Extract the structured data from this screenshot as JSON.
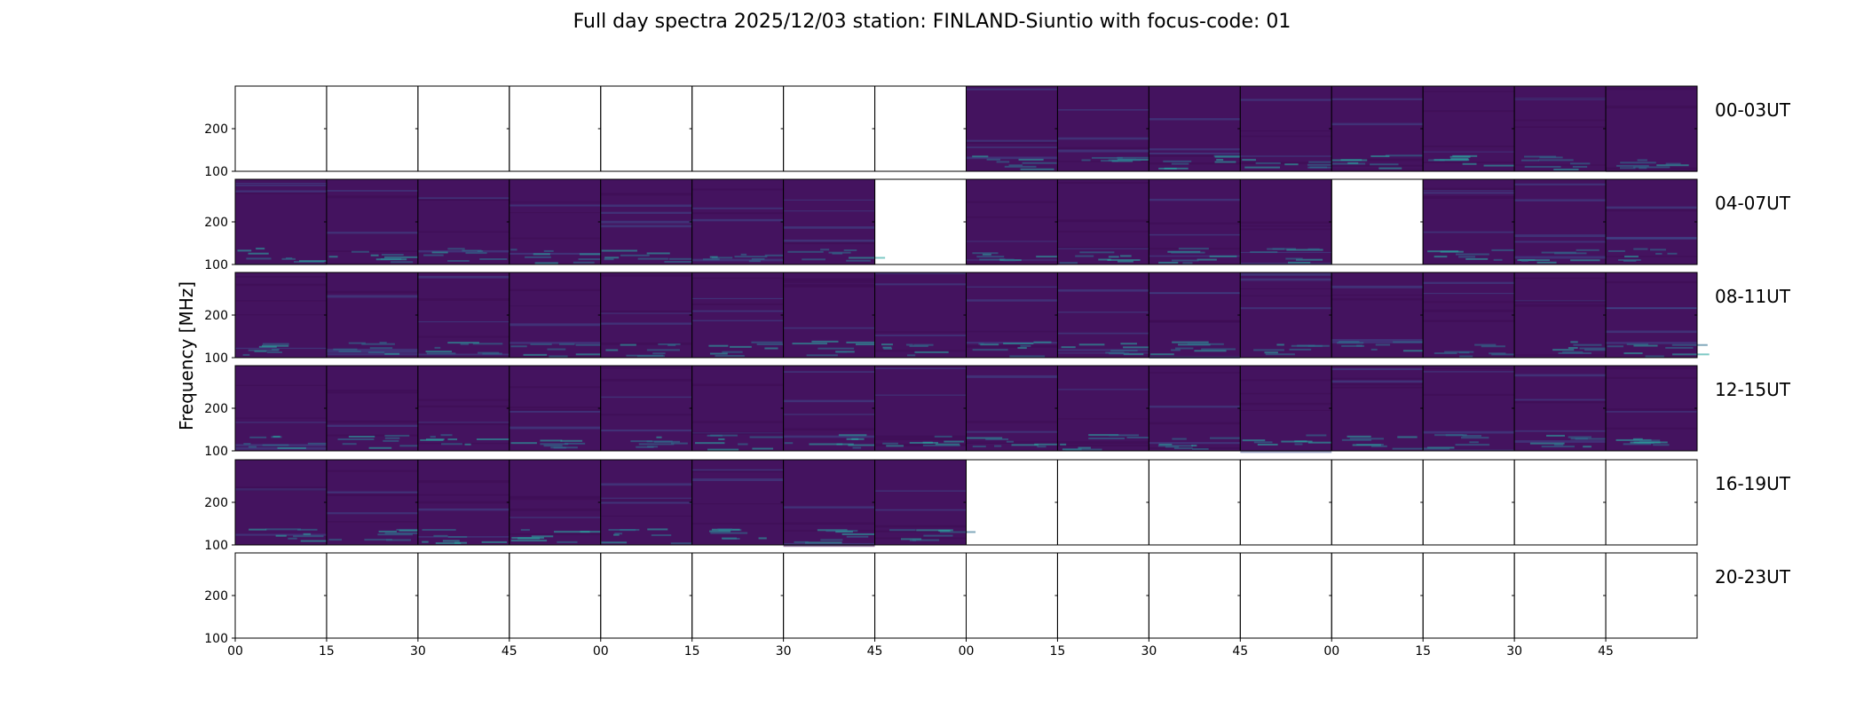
{
  "title": "Full day spectra 2025/12/03 station: FINLAND-Siuntio with focus-code: 01",
  "chart_data": {
    "type": "heatmap",
    "title": "Full day spectra 2025/12/03 station: FINLAND-Siuntio with focus-code: 01",
    "ylabel": "Frequency [MHz]",
    "xlabel": "",
    "ylim": [
      100,
      300
    ],
    "yticks": [
      "100",
      "200"
    ],
    "xticks": [
      "00",
      "15",
      "30",
      "45",
      "00",
      "15",
      "30",
      "45",
      "00",
      "15",
      "30",
      "45",
      "00",
      "15",
      "30",
      "45"
    ],
    "rows": [
      {
        "label": "00-03UT",
        "panels": [
          0,
          0,
          0,
          0,
          0,
          0,
          0,
          0,
          1,
          1,
          1,
          1,
          1,
          1,
          1,
          1
        ]
      },
      {
        "label": "04-07UT",
        "panels": [
          1,
          1,
          1,
          1,
          1,
          1,
          1,
          0,
          1,
          1,
          1,
          1,
          0,
          1,
          1,
          1
        ]
      },
      {
        "label": "08-11UT",
        "panels": [
          1,
          1,
          1,
          1,
          1,
          1,
          1,
          1,
          1,
          1,
          1,
          1,
          1,
          1,
          1,
          1
        ]
      },
      {
        "label": "12-15UT",
        "panels": [
          1,
          1,
          1,
          1,
          1,
          1,
          1,
          1,
          1,
          1,
          1,
          1,
          1,
          1,
          1,
          1
        ]
      },
      {
        "label": "16-19UT",
        "panels": [
          1,
          1,
          1,
          1,
          1,
          1,
          1,
          1,
          0,
          0,
          0,
          0,
          0,
          0,
          0,
          0
        ]
      },
      {
        "label": "20-23UT",
        "panels": [
          0,
          0,
          0,
          0,
          0,
          0,
          0,
          0,
          0,
          0,
          0,
          0,
          0,
          0,
          0,
          0
        ]
      }
    ],
    "colormap": "viridis"
  },
  "colors": {
    "base": "#44135f",
    "dark": "#3b0b52",
    "teal": "#2f6f8e",
    "cyan": "#2aa6a0",
    "blue": "#3d4f8f"
  }
}
